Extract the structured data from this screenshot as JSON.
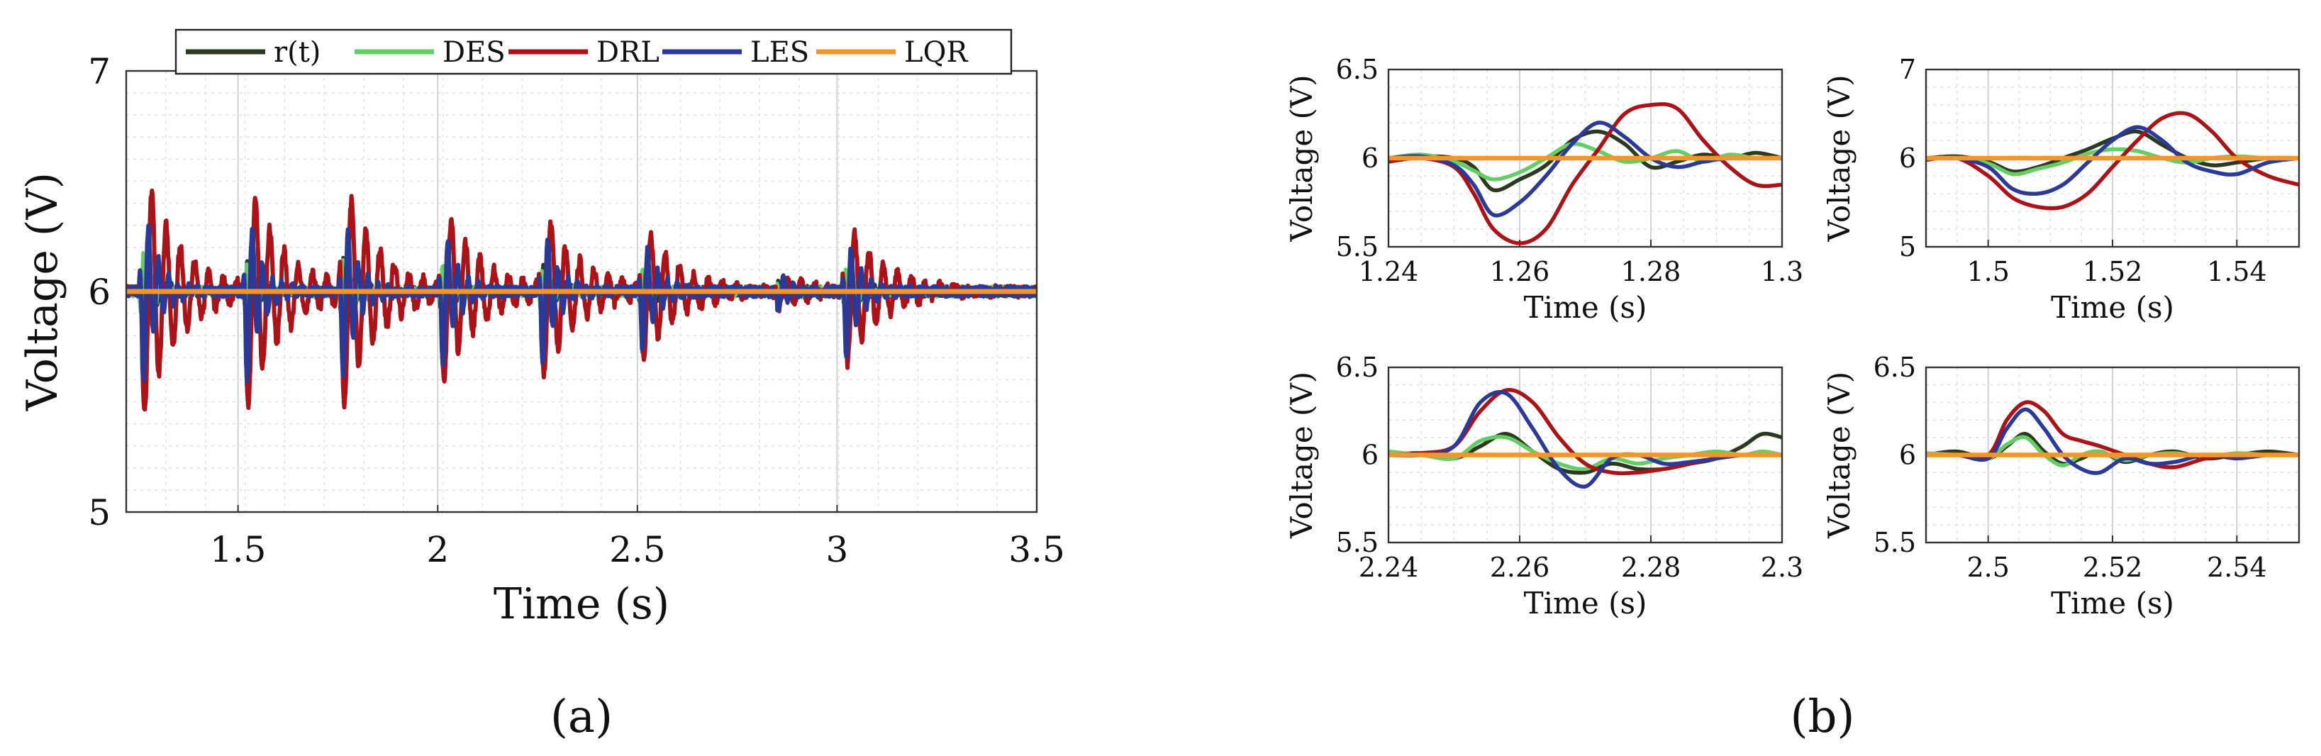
{
  "chart_data": [
    {
      "type": "line",
      "panel": "(a)",
      "xlabel": "Time (s)",
      "ylabel": "Voltage (V)",
      "xlim": [
        1.22,
        3.5
      ],
      "ylim": [
        5,
        7
      ],
      "xticks": [
        1.5,
        2,
        2.5,
        3,
        3.5
      ],
      "yticks": [
        5,
        6,
        7
      ],
      "xtick_labels": [
        "1.5",
        "2",
        "2.5",
        "3",
        "3.5"
      ],
      "ytick_labels": [
        "5",
        "6",
        "7"
      ],
      "legend": [
        "r(t)",
        "DES",
        "DRL",
        "LES",
        "LQR"
      ],
      "legend_position": "top",
      "grid": true,
      "disturbances": [
        {
          "t": 1.26,
          "drl": 0.6,
          "les": 0.45,
          "des": 0.18
        },
        {
          "t": 1.52,
          "drl": 0.55,
          "les": 0.42,
          "des": 0.15
        },
        {
          "t": 1.76,
          "drl": 0.55,
          "les": 0.42,
          "des": 0.15
        },
        {
          "t": 2.01,
          "drl": 0.4,
          "les": 0.35,
          "des": 0.12
        },
        {
          "t": 2.26,
          "drl": 0.38,
          "les": 0.35,
          "des": 0.12
        },
        {
          "t": 2.51,
          "drl": 0.3,
          "les": 0.28,
          "des": 0.1
        },
        {
          "t": 2.85,
          "drl": 0.08,
          "les": 0.08,
          "des": 0.04
        },
        {
          "t": 3.02,
          "drl": 0.35,
          "les": 0.3,
          "des": 0.1
        }
      ],
      "series": [
        {
          "name": "r(t)",
          "color": "#2b3a1e"
        },
        {
          "name": "DES",
          "color": "#66cc66"
        },
        {
          "name": "DRL",
          "color": "#aa1419"
        },
        {
          "name": "LES",
          "color": "#2a3a96"
        },
        {
          "name": "LQR",
          "color": "#f0962d"
        }
      ]
    },
    {
      "type": "line",
      "panel": "(b) top-left",
      "xlabel": "Time (s)",
      "ylabel": "Voltage (V)",
      "xlim": [
        1.24,
        1.3
      ],
      "ylim": [
        5.5,
        6.5
      ],
      "xticks": [
        1.24,
        1.26,
        1.28,
        1.3
      ],
      "yticks": [
        5.5,
        6,
        6.5
      ],
      "xtick_labels": [
        "1.24",
        "1.26",
        "1.28",
        "1.3"
      ],
      "ytick_labels": [
        "5.5",
        "6",
        "6.5"
      ],
      "grid": true,
      "series": [
        {
          "name": "r(t)",
          "x": [
            1.24,
            1.245,
            1.25,
            1.253,
            1.256,
            1.26,
            1.264,
            1.268,
            1.272,
            1.276,
            1.28,
            1.284,
            1.288,
            1.292,
            1.296,
            1.3
          ],
          "y": [
            5.99,
            6.01,
            6.0,
            5.95,
            5.82,
            5.88,
            5.96,
            6.1,
            6.15,
            6.08,
            5.95,
            5.98,
            6.02,
            6.0,
            6.03,
            6.0
          ]
        },
        {
          "name": "DES",
          "x": [
            1.24,
            1.245,
            1.25,
            1.253,
            1.256,
            1.26,
            1.264,
            1.268,
            1.272,
            1.276,
            1.28,
            1.284,
            1.288,
            1.292,
            1.296,
            1.3
          ],
          "y": [
            6.0,
            6.02,
            5.98,
            5.93,
            5.88,
            5.92,
            6.0,
            6.08,
            6.04,
            5.98,
            6.0,
            6.04,
            5.98,
            6.02,
            6.0,
            6.0
          ]
        },
        {
          "name": "DRL",
          "x": [
            1.24,
            1.245,
            1.25,
            1.253,
            1.256,
            1.26,
            1.264,
            1.268,
            1.272,
            1.276,
            1.28,
            1.284,
            1.288,
            1.292,
            1.296,
            1.3
          ],
          "y": [
            5.98,
            6.0,
            5.95,
            5.8,
            5.6,
            5.52,
            5.6,
            5.85,
            6.05,
            6.25,
            6.3,
            6.28,
            6.1,
            5.95,
            5.85,
            5.85
          ]
        },
        {
          "name": "LES",
          "x": [
            1.24,
            1.245,
            1.25,
            1.253,
            1.256,
            1.26,
            1.264,
            1.268,
            1.272,
            1.276,
            1.28,
            1.284,
            1.288,
            1.292,
            1.296,
            1.3
          ],
          "y": [
            6.0,
            6.01,
            5.96,
            5.85,
            5.68,
            5.75,
            5.9,
            6.08,
            6.2,
            6.12,
            6.0,
            5.95,
            5.98,
            6.0,
            6.0,
            6.0
          ]
        },
        {
          "name": "LQR",
          "x": [
            1.24,
            1.3
          ],
          "y": [
            6.0,
            6.0
          ]
        }
      ]
    },
    {
      "type": "line",
      "panel": "(b) top-right",
      "xlabel": "Time (s)",
      "ylabel": "Voltage (V)",
      "xlim": [
        1.49,
        1.55
      ],
      "ylim": [
        5,
        7
      ],
      "xticks": [
        1.5,
        1.52,
        1.54
      ],
      "yticks": [
        5,
        6,
        7
      ],
      "xtick_labels": [
        "1.5",
        "1.52",
        "1.54"
      ],
      "ytick_labels": [
        "5",
        "6",
        "7"
      ],
      "grid": true,
      "series": [
        {
          "name": "r(t)",
          "x": [
            1.49,
            1.495,
            1.5,
            1.504,
            1.508,
            1.512,
            1.516,
            1.52,
            1.524,
            1.528,
            1.532,
            1.536,
            1.54,
            1.545,
            1.55
          ],
          "y": [
            6.0,
            6.02,
            5.96,
            5.85,
            5.9,
            6.0,
            6.1,
            6.22,
            6.3,
            6.15,
            6.0,
            5.92,
            5.95,
            6.0,
            6.0
          ]
        },
        {
          "name": "DES",
          "x": [
            1.49,
            1.495,
            1.5,
            1.504,
            1.508,
            1.512,
            1.516,
            1.52,
            1.524,
            1.528,
            1.532,
            1.536,
            1.54,
            1.545,
            1.55
          ],
          "y": [
            6.0,
            6.0,
            5.94,
            5.82,
            5.88,
            5.95,
            6.05,
            6.1,
            6.08,
            6.0,
            5.95,
            6.0,
            6.02,
            6.0,
            6.0
          ]
        },
        {
          "name": "DRL",
          "x": [
            1.49,
            1.495,
            1.5,
            1.504,
            1.508,
            1.512,
            1.516,
            1.52,
            1.524,
            1.528,
            1.532,
            1.536,
            1.54,
            1.545,
            1.55
          ],
          "y": [
            5.98,
            6.0,
            5.8,
            5.55,
            5.45,
            5.45,
            5.6,
            5.9,
            6.2,
            6.45,
            6.5,
            6.3,
            6.0,
            5.8,
            5.7
          ]
        },
        {
          "name": "LES",
          "x": [
            1.49,
            1.495,
            1.5,
            1.504,
            1.508,
            1.512,
            1.516,
            1.52,
            1.524,
            1.528,
            1.532,
            1.536,
            1.54,
            1.545,
            1.55
          ],
          "y": [
            6.0,
            6.0,
            5.9,
            5.65,
            5.6,
            5.7,
            5.95,
            6.2,
            6.35,
            6.2,
            5.95,
            5.85,
            5.82,
            5.95,
            6.0
          ]
        },
        {
          "name": "LQR",
          "x": [
            1.49,
            1.55
          ],
          "y": [
            6.0,
            6.0
          ]
        }
      ]
    },
    {
      "type": "line",
      "panel": "(b) bottom-left",
      "xlabel": "Time (s)",
      "ylabel": "Voltage (V)",
      "xlim": [
        2.24,
        2.3
      ],
      "ylim": [
        5.5,
        6.5
      ],
      "xticks": [
        2.24,
        2.26,
        2.28,
        2.3
      ],
      "yticks": [
        5.5,
        6,
        6.5
      ],
      "xtick_labels": [
        "2.24",
        "2.26",
        "2.28",
        "2.3"
      ],
      "ytick_labels": [
        "5.5",
        "6",
        "6.5"
      ],
      "grid": true,
      "series": [
        {
          "name": "r(t)",
          "x": [
            2.24,
            2.245,
            2.25,
            2.254,
            2.258,
            2.262,
            2.266,
            2.27,
            2.274,
            2.278,
            2.282,
            2.286,
            2.29,
            2.294,
            2.297,
            2.3
          ],
          "y": [
            6.0,
            6.01,
            5.98,
            6.05,
            6.12,
            6.02,
            5.92,
            5.9,
            5.95,
            5.92,
            5.92,
            5.95,
            5.98,
            6.05,
            6.12,
            6.1
          ]
        },
        {
          "name": "DES",
          "x": [
            2.24,
            2.245,
            2.25,
            2.254,
            2.258,
            2.262,
            2.266,
            2.27,
            2.274,
            2.278,
            2.282,
            2.286,
            2.29,
            2.294,
            2.297,
            2.3
          ],
          "y": [
            6.02,
            6.0,
            5.98,
            6.08,
            6.1,
            6.02,
            5.95,
            5.92,
            5.98,
            5.95,
            5.98,
            6.0,
            6.02,
            6.0,
            6.02,
            6.0
          ]
        },
        {
          "name": "DRL",
          "x": [
            2.24,
            2.245,
            2.25,
            2.254,
            2.258,
            2.262,
            2.266,
            2.27,
            2.274,
            2.278,
            2.282,
            2.286,
            2.29,
            2.294,
            2.297,
            2.3
          ],
          "y": [
            6.0,
            6.01,
            6.05,
            6.25,
            6.37,
            6.3,
            6.1,
            5.95,
            5.9,
            5.9,
            5.92,
            5.95,
            5.98,
            6.0,
            6.0,
            6.0
          ]
        },
        {
          "name": "LES",
          "x": [
            2.24,
            2.245,
            2.25,
            2.254,
            2.258,
            2.262,
            2.266,
            2.27,
            2.274,
            2.278,
            2.282,
            2.286,
            2.29,
            2.294,
            2.297,
            2.3
          ],
          "y": [
            6.0,
            6.0,
            6.05,
            6.3,
            6.35,
            6.15,
            5.92,
            5.82,
            5.98,
            6.0,
            5.95,
            5.96,
            5.98,
            6.0,
            6.0,
            6.0
          ]
        },
        {
          "name": "LQR",
          "x": [
            2.24,
            2.3
          ],
          "y": [
            6.0,
            6.0
          ]
        }
      ]
    },
    {
      "type": "line",
      "panel": "(b) bottom-right",
      "xlabel": "Time (s)",
      "ylabel": "Voltage (V)",
      "xlim": [
        2.49,
        2.55
      ],
      "ylim": [
        5.5,
        6.5
      ],
      "xticks": [
        2.5,
        2.52,
        2.54
      ],
      "yticks": [
        5.5,
        6,
        6.5
      ],
      "xtick_labels": [
        "2.5",
        "2.52",
        "2.54"
      ],
      "ytick_labels": [
        "5.5",
        "6",
        "6.5"
      ],
      "grid": true,
      "series": [
        {
          "name": "r(t)",
          "x": [
            2.49,
            2.495,
            2.5,
            2.503,
            2.506,
            2.509,
            2.512,
            2.515,
            2.518,
            2.522,
            2.526,
            2.53,
            2.535,
            2.54,
            2.545,
            2.55
          ],
          "y": [
            6.0,
            6.02,
            5.98,
            6.05,
            6.12,
            6.02,
            5.95,
            5.98,
            6.02,
            5.96,
            6.0,
            6.02,
            5.98,
            6.0,
            6.02,
            6.0
          ]
        },
        {
          "name": "DES",
          "x": [
            2.49,
            2.495,
            2.5,
            2.503,
            2.506,
            2.509,
            2.512,
            2.515,
            2.518,
            2.522,
            2.526,
            2.53,
            2.535,
            2.54,
            2.545,
            2.55
          ],
          "y": [
            6.01,
            6.0,
            5.98,
            6.06,
            6.1,
            6.0,
            5.94,
            6.0,
            6.02,
            5.97,
            6.0,
            6.01,
            5.99,
            6.01,
            6.0,
            6.0
          ]
        },
        {
          "name": "DRL",
          "x": [
            2.49,
            2.495,
            2.5,
            2.503,
            2.506,
            2.509,
            2.512,
            2.515,
            2.518,
            2.522,
            2.526,
            2.53,
            2.535,
            2.54,
            2.545,
            2.55
          ],
          "y": [
            6.0,
            6.0,
            6.0,
            6.2,
            6.3,
            6.25,
            6.12,
            6.08,
            6.05,
            6.0,
            5.95,
            5.93,
            5.98,
            6.0,
            6.0,
            6.0
          ]
        },
        {
          "name": "LES",
          "x": [
            2.49,
            2.495,
            2.5,
            2.503,
            2.506,
            2.509,
            2.512,
            2.515,
            2.518,
            2.522,
            2.526,
            2.53,
            2.535,
            2.54,
            2.545,
            2.55
          ],
          "y": [
            6.0,
            6.0,
            5.98,
            6.15,
            6.26,
            6.15,
            6.0,
            5.92,
            5.9,
            5.98,
            5.95,
            5.96,
            6.0,
            5.98,
            6.0,
            6.0
          ]
        },
        {
          "name": "LQR",
          "x": [
            2.49,
            2.55
          ],
          "y": [
            6.0,
            6.0
          ]
        }
      ]
    }
  ],
  "panel_labels": [
    "(a)",
    "(b)"
  ]
}
